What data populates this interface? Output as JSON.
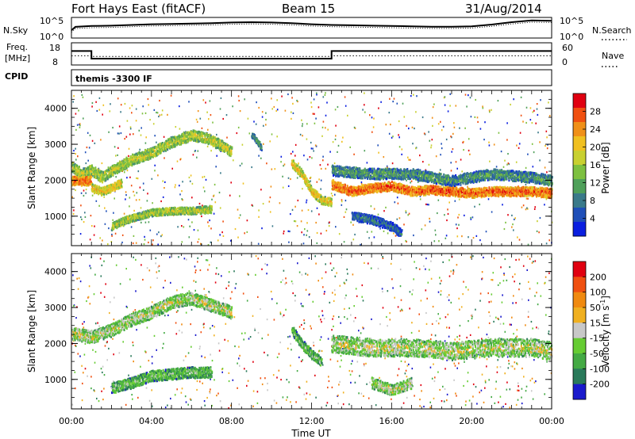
{
  "header": {
    "station": "Fort Hays East (fitACF)",
    "beam": "Beam 15",
    "date": "31/Aug/2014"
  },
  "colors": {
    "power_scale": [
      "#0a1fe0",
      "#1f4fb8",
      "#3a7a8a",
      "#4fa05a",
      "#7dc040",
      "#c8d030",
      "#f0c020",
      "#f09018",
      "#f05010",
      "#e00010"
    ],
    "velocity_scale": [
      "#1a1acc",
      "#2a7a5a",
      "#44aa44",
      "#66cc33",
      "#c8c8c8",
      "#f0b020",
      "#f08a10",
      "#f05010",
      "#e00010"
    ]
  },
  "chart_data": [
    {
      "type": "line",
      "panel": "noise",
      "ylabel_left": "N.Sky",
      "ylabel_right": "N.Search",
      "tick_labels_left": [
        "10^5",
        "10^0"
      ],
      "tick_labels_right": [
        "10^5",
        "10^0"
      ],
      "x_hours": [
        0,
        0.2,
        1,
        2,
        3,
        4,
        5,
        6,
        7,
        8,
        9,
        10,
        11,
        12,
        13,
        14,
        15,
        16,
        17,
        18,
        19,
        20,
        21,
        22,
        23,
        24
      ],
      "series": [
        {
          "values": [
            0.35,
            0.55,
            0.6,
            0.62,
            0.66,
            0.7,
            0.72,
            0.74,
            0.76,
            0.8,
            0.82,
            0.8,
            0.76,
            0.7,
            0.66,
            0.64,
            0.62,
            0.6,
            0.58,
            0.56,
            0.56,
            0.58,
            0.68,
            0.82,
            0.92,
            0.9
          ]
        }
      ]
    },
    {
      "type": "line",
      "panel": "frequency",
      "ylabel_left": "Freq. [MHz]",
      "ylabel_right": "Nave",
      "tick_labels_left": [
        "18",
        "8"
      ],
      "tick_labels_right": [
        "60",
        "0"
      ],
      "ylim_left": [
        8,
        18
      ],
      "series": [
        {
          "name": "Freq",
          "points": [
            [
              0,
              14.5
            ],
            [
              1,
              14.5
            ],
            [
              1,
              10.5
            ],
            [
              13,
              10.5
            ],
            [
              13,
              14.5
            ],
            [
              24,
              14.5
            ]
          ]
        },
        {
          "name": "Nave",
          "points": [
            [
              0,
              24
            ],
            [
              1,
              24
            ],
            [
              1,
              22
            ],
            [
              13,
              22
            ],
            [
              13,
              24
            ],
            [
              24,
              24
            ]
          ]
        }
      ]
    },
    {
      "type": "table",
      "panel": "cpid",
      "label": "CPID",
      "text": "themis -3300 IF"
    },
    {
      "type": "heatmap",
      "panel": "power",
      "title": "",
      "ylabel": "Slant Range [km]",
      "colorbar_label": "Power [dB]",
      "colorbar_ticks": [
        "28",
        "24",
        "20",
        "16",
        "12",
        "8",
        "4"
      ],
      "ylim": [
        180,
        4500
      ],
      "yticks": [
        "4000",
        "3000",
        "2000",
        "1000"
      ],
      "xlim_hours": [
        0,
        24
      ],
      "bands": [
        {
          "pts": [
            [
              0,
              2400
            ],
            [
              0.5,
              2200
            ],
            [
              1,
              2300
            ],
            [
              1.5,
              2100
            ],
            [
              2,
              2300
            ],
            [
              3,
              2600
            ],
            [
              4,
              2800
            ],
            [
              5,
              3100
            ],
            [
              6,
              3300
            ],
            [
              6.8,
              3200
            ],
            [
              7.5,
              3000
            ],
            [
              8,
              2800
            ]
          ],
          "width": 300,
          "level": 5
        },
        {
          "pts": [
            [
              0,
              2000
            ],
            [
              1,
              2000
            ]
          ],
          "width": 250,
          "level": 8
        },
        {
          "pts": [
            [
              1,
              1800
            ],
            [
              1.5,
              1700
            ],
            [
              2,
              1800
            ],
            [
              2.5,
              1950
            ]
          ],
          "width": 220,
          "level": 6
        },
        {
          "pts": [
            [
              2,
              700
            ],
            [
              2.5,
              850
            ],
            [
              3,
              950
            ],
            [
              4,
              1100
            ],
            [
              5,
              1150
            ],
            [
              6,
              1150
            ],
            [
              7,
              1200
            ]
          ],
          "width": 200,
          "level": 5
        },
        {
          "pts": [
            [
              9,
              3300
            ],
            [
              9.3,
              3100
            ],
            [
              9.5,
              2900
            ]
          ],
          "width": 150,
          "level": 3
        },
        {
          "pts": [
            [
              11,
              2500
            ],
            [
              11.5,
              2200
            ],
            [
              12,
              1700
            ],
            [
              12.5,
              1450
            ],
            [
              13,
              1400
            ]
          ],
          "width": 230,
          "level": 6
        },
        {
          "pts": [
            [
              13,
              1900
            ],
            [
              14,
              1700
            ],
            [
              15,
              1800
            ],
            [
              16,
              1850
            ],
            [
              17,
              1700
            ],
            [
              18,
              1750
            ],
            [
              19,
              1700
            ],
            [
              20,
              1650
            ],
            [
              21,
              1700
            ],
            [
              22,
              1700
            ],
            [
              23,
              1700
            ],
            [
              24,
              1650
            ]
          ],
          "width": 260,
          "level": 8
        },
        {
          "pts": [
            [
              13,
              2300
            ],
            [
              15,
              2200
            ],
            [
              17,
              2200
            ],
            [
              19,
              2000
            ],
            [
              21,
              2200
            ],
            [
              23,
              2100
            ],
            [
              24,
              2000
            ]
          ],
          "width": 300,
          "level": 3
        },
        {
          "pts": [
            [
              14,
              1000
            ],
            [
              15,
              900
            ],
            [
              16,
              700
            ],
            [
              16.5,
              500
            ]
          ],
          "width": 250,
          "level": 2
        }
      ]
    },
    {
      "type": "heatmap",
      "panel": "velocity",
      "ylabel": "Slant Range [km]",
      "colorbar_label": "Velocity [m s^-1]",
      "colorbar_ticks": [
        "200",
        "100",
        "50",
        "15",
        "-15",
        "-50",
        "-100",
        "-200"
      ],
      "ylim": [
        180,
        4500
      ],
      "yticks": [
        "4000",
        "3000",
        "2000",
        "1000"
      ],
      "xlim_hours": [
        0,
        24
      ],
      "xtick_labels": [
        "00:00",
        "04:00",
        "08:00",
        "12:00",
        "16:00",
        "20:00",
        "00:00"
      ],
      "xlabel": "Time UT",
      "bands": [
        {
          "pts": [
            [
              0,
              2300
            ],
            [
              1,
              2200
            ],
            [
              2,
              2400
            ],
            [
              3,
              2700
            ],
            [
              4,
              2900
            ],
            [
              5,
              3200
            ],
            [
              6,
              3300
            ],
            [
              7,
              3100
            ],
            [
              8,
              2900
            ]
          ],
          "width": 350,
          "level": 4
        },
        {
          "pts": [
            [
              2,
              750
            ],
            [
              3,
              900
            ],
            [
              4,
              1100
            ],
            [
              5,
              1150
            ],
            [
              6,
              1200
            ],
            [
              7,
              1200
            ]
          ],
          "width": 300,
          "level": 3
        },
        {
          "pts": [
            [
              11,
              2400
            ],
            [
              11.5,
              2000
            ],
            [
              12,
              1700
            ],
            [
              12.5,
              1500
            ]
          ],
          "width": 250,
          "level": 3
        },
        {
          "pts": [
            [
              13,
              2000
            ],
            [
              15,
              1900
            ],
            [
              17,
              1900
            ],
            [
              19,
              1800
            ],
            [
              21,
              1900
            ],
            [
              23,
              1900
            ],
            [
              24,
              1800
            ]
          ],
          "width": 500,
          "level": 4
        },
        {
          "pts": [
            [
              15,
              900
            ],
            [
              16,
              700
            ],
            [
              17,
              900
            ]
          ],
          "width": 300,
          "level": 4
        }
      ]
    }
  ]
}
